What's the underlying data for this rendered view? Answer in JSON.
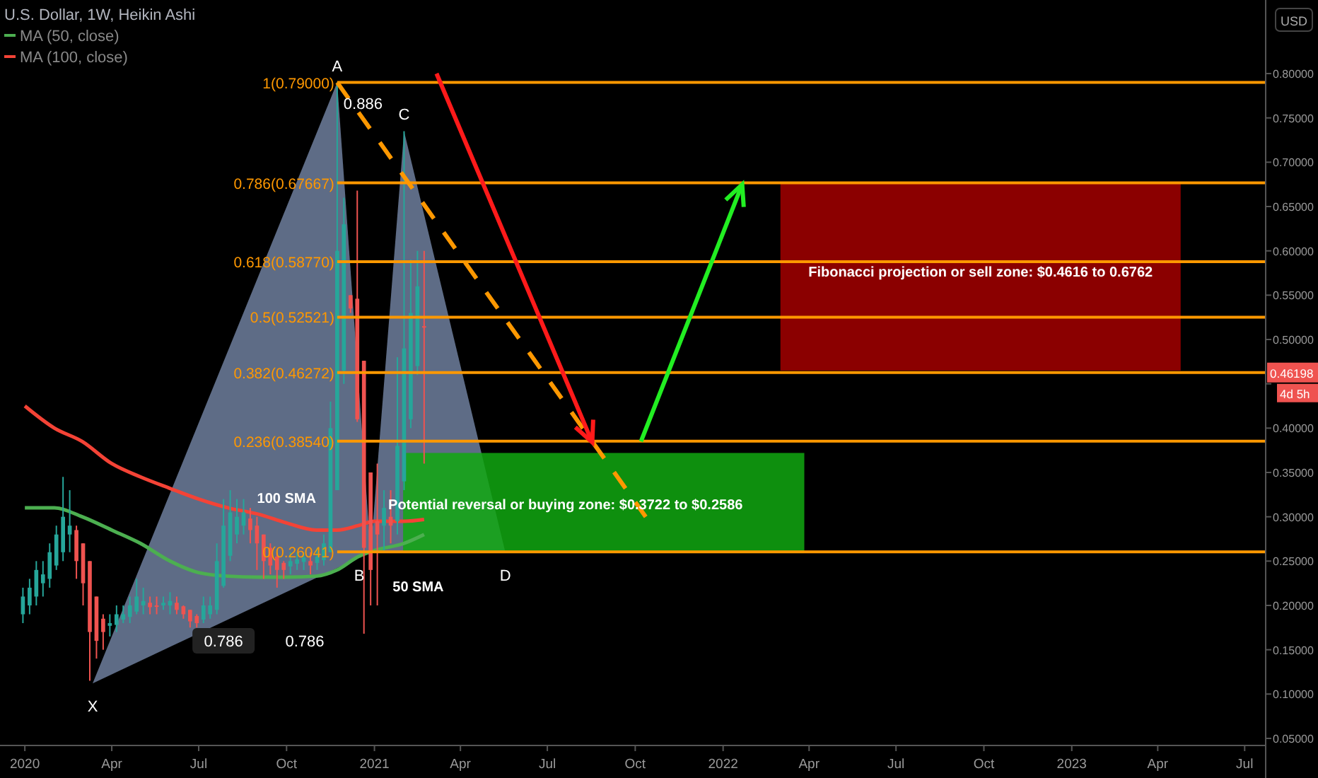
{
  "chart_data": {
    "type": "candlestick",
    "title": "U.S. Dollar, 1W, Heikin Ashi",
    "legend": "top left",
    "grid": false,
    "x": [
      "2019-12-30",
      "2020-01-06",
      "2020-01-13",
      "2020-01-20",
      "2020-01-27",
      "2020-02-03",
      "2020-02-10",
      "2020-02-17",
      "2020-02-24",
      "2020-03-02",
      "2020-03-09",
      "2020-03-16",
      "2020-03-23",
      "2020-03-30",
      "2020-04-06",
      "2020-04-13",
      "2020-04-20",
      "2020-04-27",
      "2020-05-04",
      "2020-05-11",
      "2020-05-18",
      "2020-05-25",
      "2020-06-01",
      "2020-06-08",
      "2020-06-15",
      "2020-06-22",
      "2020-06-29",
      "2020-07-06",
      "2020-07-13",
      "2020-07-20",
      "2020-07-27",
      "2020-08-03",
      "2020-08-10",
      "2020-08-17",
      "2020-08-24",
      "2020-08-31",
      "2020-09-07",
      "2020-09-14",
      "2020-09-21",
      "2020-09-28",
      "2020-10-05",
      "2020-10-12",
      "2020-10-19",
      "2020-10-26",
      "2020-11-02",
      "2020-11-09",
      "2020-11-16",
      "2020-11-23",
      "2020-11-30",
      "2020-12-07",
      "2020-12-14",
      "2020-12-21",
      "2020-12-28",
      "2021-01-04",
      "2021-01-11",
      "2021-01-18",
      "2021-01-25",
      "2021-02-01",
      "2021-02-08",
      "2021-02-15",
      "2021-02-22"
    ],
    "ohlc": [
      [
        0.19,
        0.22,
        0.18,
        0.21
      ],
      [
        0.2,
        0.23,
        0.19,
        0.22
      ],
      [
        0.21,
        0.25,
        0.2,
        0.24
      ],
      [
        0.225,
        0.25,
        0.21,
        0.235
      ],
      [
        0.23,
        0.27,
        0.22,
        0.26
      ],
      [
        0.245,
        0.29,
        0.24,
        0.28
      ],
      [
        0.26,
        0.345,
        0.25,
        0.3
      ],
      [
        0.28,
        0.33,
        0.26,
        0.29
      ],
      [
        0.285,
        0.29,
        0.23,
        0.25
      ],
      [
        0.27,
        0.27,
        0.2,
        0.225
      ],
      [
        0.25,
        0.25,
        0.115,
        0.17
      ],
      [
        0.21,
        0.21,
        0.14,
        0.16
      ],
      [
        0.185,
        0.19,
        0.15,
        0.17
      ],
      [
        0.177,
        0.19,
        0.165,
        0.18
      ],
      [
        0.178,
        0.2,
        0.17,
        0.19
      ],
      [
        0.184,
        0.2,
        0.18,
        0.19
      ],
      [
        0.187,
        0.21,
        0.18,
        0.2
      ],
      [
        0.193,
        0.23,
        0.19,
        0.21
      ],
      [
        0.2,
        0.22,
        0.19,
        0.205
      ],
      [
        0.203,
        0.21,
        0.19,
        0.198
      ],
      [
        0.2,
        0.21,
        0.19,
        0.199
      ],
      [
        0.2,
        0.21,
        0.195,
        0.203
      ],
      [
        0.2,
        0.215,
        0.19,
        0.205
      ],
      [
        0.203,
        0.21,
        0.19,
        0.195
      ],
      [
        0.199,
        0.2,
        0.185,
        0.19
      ],
      [
        0.195,
        0.195,
        0.175,
        0.182
      ],
      [
        0.188,
        0.19,
        0.175,
        0.18
      ],
      [
        0.184,
        0.21,
        0.18,
        0.2
      ],
      [
        0.19,
        0.21,
        0.185,
        0.2
      ],
      [
        0.195,
        0.27,
        0.19,
        0.25
      ],
      [
        0.222,
        0.32,
        0.22,
        0.29
      ],
      [
        0.256,
        0.33,
        0.25,
        0.305
      ],
      [
        0.28,
        0.32,
        0.27,
        0.3
      ],
      [
        0.29,
        0.32,
        0.28,
        0.305
      ],
      [
        0.298,
        0.31,
        0.27,
        0.285
      ],
      [
        0.29,
        0.3,
        0.24,
        0.27
      ],
      [
        0.28,
        0.28,
        0.23,
        0.25
      ],
      [
        0.265,
        0.27,
        0.235,
        0.245
      ],
      [
        0.255,
        0.26,
        0.22,
        0.24
      ],
      [
        0.248,
        0.25,
        0.23,
        0.24
      ],
      [
        0.244,
        0.26,
        0.235,
        0.25
      ],
      [
        0.247,
        0.26,
        0.24,
        0.252
      ],
      [
        0.249,
        0.26,
        0.24,
        0.254
      ],
      [
        0.25,
        0.26,
        0.235,
        0.245
      ],
      [
        0.248,
        0.265,
        0.24,
        0.255
      ],
      [
        0.251,
        0.28,
        0.245,
        0.27
      ],
      [
        0.26,
        0.43,
        0.26,
        0.4
      ],
      [
        0.33,
        0.79,
        0.33,
        0.6
      ],
      [
        0.465,
        0.66,
        0.45,
        0.63
      ],
      [
        0.55,
        0.55,
        0.53,
        0.535
      ],
      [
        0.546,
        0.668,
        0.407,
        0.41
      ],
      [
        0.476,
        0.476,
        0.168,
        0.265
      ],
      [
        0.35,
        0.35,
        0.2,
        0.24
      ],
      [
        0.295,
        0.36,
        0.2,
        0.28
      ],
      [
        0.29,
        0.33,
        0.26,
        0.31
      ],
      [
        0.3,
        0.33,
        0.27,
        0.29
      ],
      [
        0.295,
        0.48,
        0.28,
        0.38
      ],
      [
        0.34,
        0.735,
        0.33,
        0.49
      ],
      [
        0.41,
        0.59,
        0.4,
        0.53
      ],
      [
        0.47,
        0.6,
        0.46,
        0.56
      ],
      [
        0.515,
        0.6,
        0.36,
        0.515
      ]
    ],
    "colors": [
      "#26a69a",
      "#26a69a",
      "#26a69a",
      "#26a69a",
      "#26a69a",
      "#26a69a",
      "#26a69a",
      "#26a69a",
      "#ef5350",
      "#ef5350",
      "#ef5350",
      "#ef5350",
      "#ef5350",
      "#26a69a",
      "#26a69a",
      "#26a69a",
      "#26a69a",
      "#26a69a",
      "#26a69a",
      "#ef5350",
      "#ef5350",
      "#26a69a",
      "#26a69a",
      "#ef5350",
      "#ef5350",
      "#ef5350",
      "#ef5350",
      "#26a69a",
      "#26a69a",
      "#26a69a",
      "#26a69a",
      "#26a69a",
      "#26a69a",
      "#26a69a",
      "#ef5350",
      "#ef5350",
      "#ef5350",
      "#ef5350",
      "#ef5350",
      "#ef5350",
      "#26a69a",
      "#26a69a",
      "#26a69a",
      "#ef5350",
      "#26a69a",
      "#26a69a",
      "#26a69a",
      "#26a69a",
      "#26a69a",
      "#ef5350",
      "#ef5350",
      "#ef5350",
      "#ef5350",
      "#ef5350",
      "#26a69a",
      "#ef5350",
      "#26a69a",
      "#26a69a",
      "#26a69a",
      "#26a69a",
      "#ef5350"
    ],
    "series": [
      {
        "name": "MA (50, close)",
        "type": "line",
        "color": "#4caf50",
        "x": [
          "2020-01-01",
          "2020-02-01",
          "2020-03-01",
          "2020-04-01",
          "2020-05-01",
          "2020-06-01",
          "2020-07-01",
          "2020-08-01",
          "2020-09-01",
          "2020-10-01",
          "2020-11-01",
          "2020-11-23",
          "2020-12-15",
          "2021-01-01",
          "2021-02-01",
          "2021-02-22"
        ],
        "values": [
          0.31,
          0.31,
          0.3,
          0.285,
          0.27,
          0.25,
          0.237,
          0.233,
          0.232,
          0.232,
          0.233,
          0.24,
          0.255,
          0.262,
          0.27,
          0.28
        ]
      },
      {
        "name": "MA (100, close)",
        "type": "line",
        "color": "#f44336",
        "x": [
          "2020-01-01",
          "2020-02-01",
          "2020-03-01",
          "2020-04-01",
          "2020-05-01",
          "2020-06-01",
          "2020-07-01",
          "2020-08-01",
          "2020-09-01",
          "2020-10-01",
          "2020-11-01",
          "2020-11-23",
          "2020-12-15",
          "2021-01-01",
          "2021-02-01",
          "2021-02-22"
        ],
        "values": [
          0.425,
          0.4,
          0.385,
          0.36,
          0.345,
          0.332,
          0.32,
          0.31,
          0.303,
          0.293,
          0.285,
          0.285,
          0.29,
          0.295,
          0.295,
          0.297
        ]
      }
    ],
    "xlim": [
      "2019-12-06",
      "2023-07-23"
    ],
    "xticks": [
      {
        "value": "2020-01-01",
        "label": "2020"
      },
      {
        "value": "2020-04-01",
        "label": "Apr"
      },
      {
        "value": "2020-07-01",
        "label": "Jul"
      },
      {
        "value": "2020-10-01",
        "label": "Oct"
      },
      {
        "value": "2021-01-01",
        "label": "2021"
      },
      {
        "value": "2021-04-01",
        "label": "Apr"
      },
      {
        "value": "2021-07-01",
        "label": "Jul"
      },
      {
        "value": "2021-10-01",
        "label": "Oct"
      },
      {
        "value": "2022-01-01",
        "label": "2022"
      },
      {
        "value": "2022-04-01",
        "label": "Apr"
      },
      {
        "value": "2022-07-01",
        "label": "Jul"
      },
      {
        "value": "2022-10-01",
        "label": "Oct"
      },
      {
        "value": "2023-01-01",
        "label": "2023"
      },
      {
        "value": "2023-04-01",
        "label": "Apr"
      },
      {
        "value": "2023-07-01",
        "label": "Jul"
      }
    ],
    "ylim": [
      0.042,
      0.883
    ],
    "yticks": [
      {
        "value": 0.05,
        "label": "0.05000"
      },
      {
        "value": 0.1,
        "label": "0.10000"
      },
      {
        "value": 0.15,
        "label": "0.15000"
      },
      {
        "value": 0.2,
        "label": "0.20000"
      },
      {
        "value": 0.25,
        "label": "0.25000"
      },
      {
        "value": 0.3,
        "label": "0.30000"
      },
      {
        "value": 0.35,
        "label": "0.35000"
      },
      {
        "value": 0.4,
        "label": "0.40000"
      },
      {
        "value": 0.45,
        "label": null
      },
      {
        "value": 0.5,
        "label": "0.50000"
      },
      {
        "value": 0.55,
        "label": "0.55000"
      },
      {
        "value": 0.6,
        "label": "0.60000"
      },
      {
        "value": 0.65,
        "label": "0.65000"
      },
      {
        "value": 0.7,
        "label": "0.70000"
      },
      {
        "value": 0.75,
        "label": "0.75000"
      },
      {
        "value": 0.8,
        "label": "0.80000"
      }
    ],
    "ref_lines": [
      {
        "axis": "y",
        "value": 0.79,
        "label": "1(0.79000)",
        "color": "#ff9800"
      },
      {
        "axis": "y",
        "value": 0.67667,
        "label": "0.786(0.67667)",
        "color": "#ff9800"
      },
      {
        "axis": "y",
        "value": 0.5877,
        "label": "0.618(0.58770)",
        "color": "#ff9800"
      },
      {
        "axis": "y",
        "value": 0.52521,
        "label": "0.5(0.52521)",
        "color": "#ff9800"
      },
      {
        "axis": "y",
        "value": 0.46272,
        "label": "0.382(0.46272)",
        "color": "#ff9800"
      },
      {
        "axis": "y",
        "value": 0.3854,
        "label": "0.236(0.38540)",
        "color": "#ff9800"
      },
      {
        "axis": "y",
        "value": 0.26041,
        "label": "0(0.26041)",
        "color": "#ff9800"
      }
    ],
    "annotations": [
      {
        "text": "X",
        "x": "2020-03-12",
        "y": 0.112
      },
      {
        "text": "A",
        "x": "2020-11-23",
        "y": 0.79
      },
      {
        "text": "B",
        "x": "2020-12-28",
        "y": 0.26
      },
      {
        "text": "C",
        "x": "2021-02-01",
        "y": 0.735
      },
      {
        "text": "D",
        "x": "2021-05-18",
        "y": 0.26
      },
      {
        "text": "100 SMA",
        "x": "2020-10-01",
        "y": 0.293
      },
      {
        "text": "50 SMA",
        "x": "2021-02-01",
        "y": 0.27
      },
      "0.886",
      "0.786",
      "0.786",
      "Potential reversal or buying zone: $0.3722 to $0.2586",
      "Fibonacci projection or sell zone: $0.4616 to 0.6762",
      "0.46198",
      "4d 5h",
      "USD"
    ]
  }
}
